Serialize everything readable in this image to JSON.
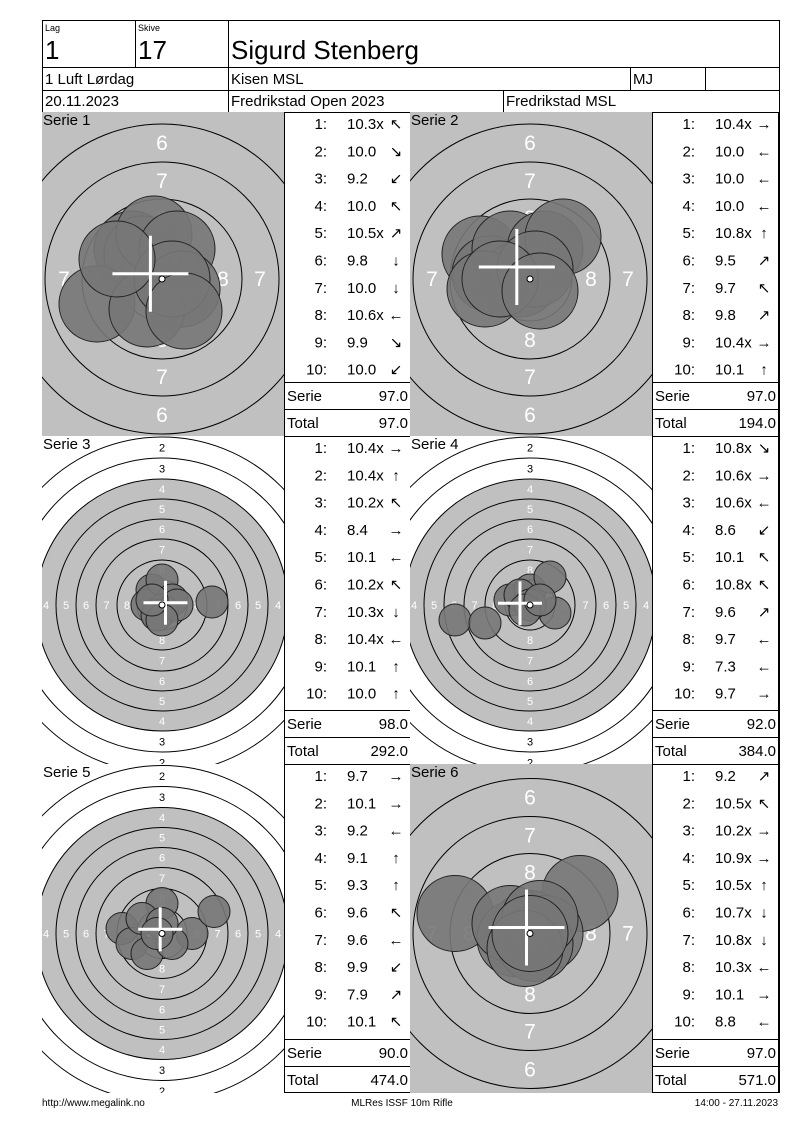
{
  "header": {
    "lag_label": "Lag",
    "lag": "1",
    "skive_label": "Skive",
    "skive": "17",
    "name": "Sigurd Stenberg",
    "class": "1 Luft Lørdag",
    "club": "Kisen MSL",
    "code": "MJ",
    "date": "20.11.2023",
    "event": "Fredrikstad Open 2023",
    "organizer": "Fredrikstad MSL"
  },
  "serie_label": "Serie",
  "total_label": "Total",
  "target_scales": {
    "large": [
      "6",
      "7",
      "8"
    ],
    "small": [
      "2",
      "3",
      "4",
      "5",
      "6",
      "7",
      "8"
    ]
  },
  "series": [
    {
      "title": "Serie 1",
      "target": "large",
      "serie": "97.0",
      "total": "97.0",
      "shots": [
        {
          "n": "1:",
          "score": "10.3x",
          "dir": "↖"
        },
        {
          "n": "2:",
          "score": "10.0",
          "dir": "↘"
        },
        {
          "n": "3:",
          "score": "9.2",
          "dir": "↙"
        },
        {
          "n": "4:",
          "score": "10.0",
          "dir": "↖"
        },
        {
          "n": "5:",
          "score": "10.5x",
          "dir": "↗"
        },
        {
          "n": "6:",
          "score": "9.8",
          "dir": "↓"
        },
        {
          "n": "7:",
          "score": "10.0",
          "dir": "↓"
        },
        {
          "n": "8:",
          "score": "10.6x",
          "dir": "←"
        },
        {
          "n": "9:",
          "score": "9.9",
          "dir": "↘"
        },
        {
          "n": "10:",
          "score": "10.0",
          "dir": "↙"
        }
      ]
    },
    {
      "title": "Serie 2",
      "target": "large",
      "serie": "97.0",
      "total": "194.0",
      "shots": [
        {
          "n": "1:",
          "score": "10.4x",
          "dir": "→"
        },
        {
          "n": "2:",
          "score": "10.0",
          "dir": "←"
        },
        {
          "n": "3:",
          "score": "10.0",
          "dir": "←"
        },
        {
          "n": "4:",
          "score": "10.0",
          "dir": "←"
        },
        {
          "n": "5:",
          "score": "10.8x",
          "dir": "↑"
        },
        {
          "n": "6:",
          "score": "9.5",
          "dir": "↗"
        },
        {
          "n": "7:",
          "score": "9.7",
          "dir": "↖"
        },
        {
          "n": "8:",
          "score": "9.8",
          "dir": "↗"
        },
        {
          "n": "9:",
          "score": "10.4x",
          "dir": "→"
        },
        {
          "n": "10:",
          "score": "10.1",
          "dir": "↑"
        }
      ]
    },
    {
      "title": "Serie 3",
      "target": "small",
      "serie": "98.0",
      "total": "292.0",
      "shots": [
        {
          "n": "1:",
          "score": "10.4x",
          "dir": "→"
        },
        {
          "n": "2:",
          "score": "10.4x",
          "dir": "↑"
        },
        {
          "n": "3:",
          "score": "10.2x",
          "dir": "↖"
        },
        {
          "n": "4:",
          "score": "8.4",
          "dir": "→"
        },
        {
          "n": "5:",
          "score": "10.1",
          "dir": "←"
        },
        {
          "n": "6:",
          "score": "10.2x",
          "dir": "↖"
        },
        {
          "n": "7:",
          "score": "10.3x",
          "dir": "↓"
        },
        {
          "n": "8:",
          "score": "10.4x",
          "dir": "←"
        },
        {
          "n": "9:",
          "score": "10.1",
          "dir": "↑"
        },
        {
          "n": "10:",
          "score": "10.0",
          "dir": "↑"
        }
      ]
    },
    {
      "title": "Serie 4",
      "target": "small",
      "serie": "92.0",
      "total": "384.0",
      "shots": [
        {
          "n": "1:",
          "score": "10.8x",
          "dir": "↘"
        },
        {
          "n": "2:",
          "score": "10.6x",
          "dir": "→"
        },
        {
          "n": "3:",
          "score": "10.6x",
          "dir": "←"
        },
        {
          "n": "4:",
          "score": "8.6",
          "dir": "↙"
        },
        {
          "n": "5:",
          "score": "10.1",
          "dir": "↖"
        },
        {
          "n": "6:",
          "score": "10.8x",
          "dir": "↖"
        },
        {
          "n": "7:",
          "score": "9.6",
          "dir": "↗"
        },
        {
          "n": "8:",
          "score": "9.7",
          "dir": "←"
        },
        {
          "n": "9:",
          "score": "7.3",
          "dir": "←"
        },
        {
          "n": "10:",
          "score": "9.7",
          "dir": "→"
        }
      ]
    },
    {
      "title": "Serie 5",
      "target": "small",
      "serie": "90.0",
      "total": "474.0",
      "shots": [
        {
          "n": "1:",
          "score": "9.7",
          "dir": "→"
        },
        {
          "n": "2:",
          "score": "10.1",
          "dir": "→"
        },
        {
          "n": "3:",
          "score": "9.2",
          "dir": "←"
        },
        {
          "n": "4:",
          "score": "9.1",
          "dir": "↑"
        },
        {
          "n": "5:",
          "score": "9.3",
          "dir": "↑"
        },
        {
          "n": "6:",
          "score": "9.6",
          "dir": "↖"
        },
        {
          "n": "7:",
          "score": "9.6",
          "dir": "←"
        },
        {
          "n": "8:",
          "score": "9.9",
          "dir": "↙"
        },
        {
          "n": "9:",
          "score": "7.9",
          "dir": "↗"
        },
        {
          "n": "10:",
          "score": "10.1",
          "dir": "↖"
        }
      ]
    },
    {
      "title": "Serie 6",
      "target": "large",
      "serie": "97.0",
      "total": "571.0",
      "shots": [
        {
          "n": "1:",
          "score": "9.2",
          "dir": "↗"
        },
        {
          "n": "2:",
          "score": "10.5x",
          "dir": "↖"
        },
        {
          "n": "3:",
          "score": "10.2x",
          "dir": "→"
        },
        {
          "n": "4:",
          "score": "10.9x",
          "dir": "→"
        },
        {
          "n": "5:",
          "score": "10.5x",
          "dir": "↑"
        },
        {
          "n": "6:",
          "score": "10.7x",
          "dir": "↓"
        },
        {
          "n": "7:",
          "score": "10.8x",
          "dir": "↓"
        },
        {
          "n": "8:",
          "score": "10.3x",
          "dir": "←"
        },
        {
          "n": "9:",
          "score": "10.1",
          "dir": "→"
        },
        {
          "n": "10:",
          "score": "8.8",
          "dir": "←"
        }
      ]
    }
  ],
  "footer": {
    "url": "http://www.megalink.no",
    "software": "MLRes ISSF 10m Rifle",
    "timestamp": "14:00 - 27.11.2023"
  }
}
